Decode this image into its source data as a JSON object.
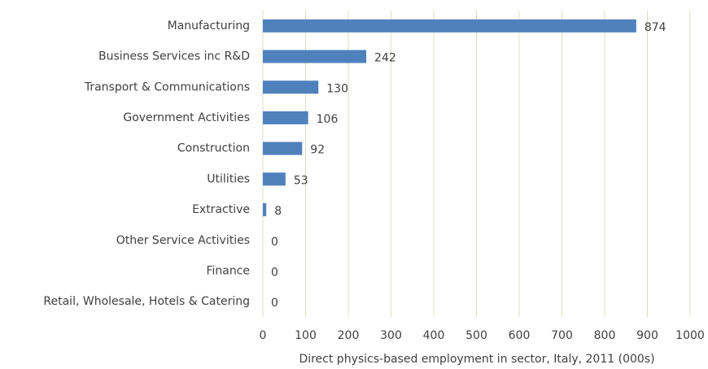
{
  "chart_data": {
    "type": "barh",
    "categories": [
      "Manufacturing",
      "Business Services inc R&D",
      "Transport & Communications",
      "Government Activities",
      "Construction",
      "Utilities",
      "Extractive",
      "Other Service Activities",
      "Finance",
      "Retail, Wholesale, Hotels & Catering"
    ],
    "values": [
      874,
      242,
      130,
      106,
      92,
      53,
      8,
      0,
      0,
      0
    ],
    "color": "#4f81bd",
    "xlabel": "Direct physics-based employment in sector, Italy, 2011 (000s)",
    "xlim": [
      0,
      1000
    ],
    "xticks": [
      0,
      100,
      200,
      300,
      400,
      500,
      600,
      700,
      800,
      900,
      1000
    ],
    "grid": true
  }
}
